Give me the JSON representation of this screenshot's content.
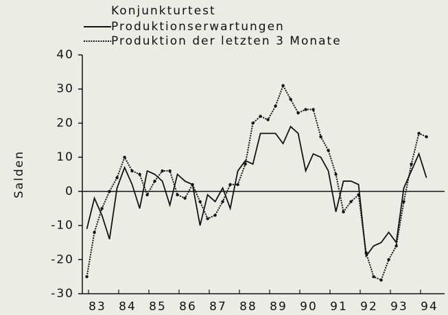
{
  "chart_data": {
    "type": "line",
    "title": "Konjunkturtest",
    "y_label": "Salden",
    "x": [
      1983.0,
      1983.25,
      1983.5,
      1983.75,
      1984.0,
      1984.25,
      1984.5,
      1984.75,
      1985.0,
      1985.25,
      1985.5,
      1985.75,
      1986.0,
      1986.25,
      1986.5,
      1986.75,
      1987.0,
      1987.25,
      1987.5,
      1987.75,
      1988.0,
      1988.25,
      1988.5,
      1988.75,
      1989.0,
      1989.25,
      1989.5,
      1989.75,
      1990.0,
      1990.25,
      1990.5,
      1990.75,
      1991.0,
      1991.25,
      1991.5,
      1991.75,
      1992.0,
      1992.25,
      1992.5,
      1992.75,
      1993.0,
      1993.25,
      1993.5,
      1993.75,
      1994.0,
      1994.25
    ],
    "series": [
      {
        "name": "Produktionserwartungen",
        "color": "#111111",
        "style": "solid",
        "values": [
          -11,
          -2,
          -7,
          -14,
          1,
          7,
          2,
          -5,
          6,
          5,
          3,
          -4,
          5,
          3,
          2,
          -10,
          -1,
          -3,
          1,
          -5,
          6,
          9,
          8,
          17,
          17,
          17,
          14,
          19,
          17,
          6,
          11,
          10,
          6,
          -6,
          3,
          3,
          2,
          -19,
          -16,
          -15,
          -12,
          -15,
          1,
          6,
          11,
          4
        ]
      },
      {
        "name": "Produktion der letzten 3 Monate",
        "color": "#111111",
        "style": "markers",
        "values": [
          -25,
          -12,
          -5,
          0,
          4,
          10,
          6,
          5,
          -1,
          3,
          6,
          6,
          -1,
          -2,
          2,
          -3,
          -8,
          -7,
          -3,
          2,
          2,
          8,
          20,
          22,
          21,
          25,
          31,
          27,
          23,
          24,
          24,
          16,
          12,
          5,
          -6,
          -3,
          -1,
          -18,
          -25,
          -26,
          -20,
          -16,
          -3,
          8,
          17,
          16
        ]
      }
    ],
    "xlim": [
      1982.85,
      1994.85
    ],
    "ylim": [
      -30,
      40
    ],
    "yticks": [
      -30,
      -20,
      -10,
      0,
      10,
      20,
      30,
      40
    ],
    "xticks": [
      {
        "value": 1983.35,
        "label": "83"
      },
      {
        "value": 1984.35,
        "label": "84"
      },
      {
        "value": 1985.35,
        "label": "85"
      },
      {
        "value": 1986.35,
        "label": "86"
      },
      {
        "value": 1987.35,
        "label": "87"
      },
      {
        "value": 1988.35,
        "label": "88"
      },
      {
        "value": 1989.35,
        "label": "89"
      },
      {
        "value": 1990.35,
        "label": "90"
      },
      {
        "value": 1991.35,
        "label": "91"
      },
      {
        "value": 1992.35,
        "label": "92"
      },
      {
        "value": 1993.35,
        "label": "93"
      },
      {
        "value": 1994.35,
        "label": "94"
      }
    ],
    "zero_line": true
  }
}
